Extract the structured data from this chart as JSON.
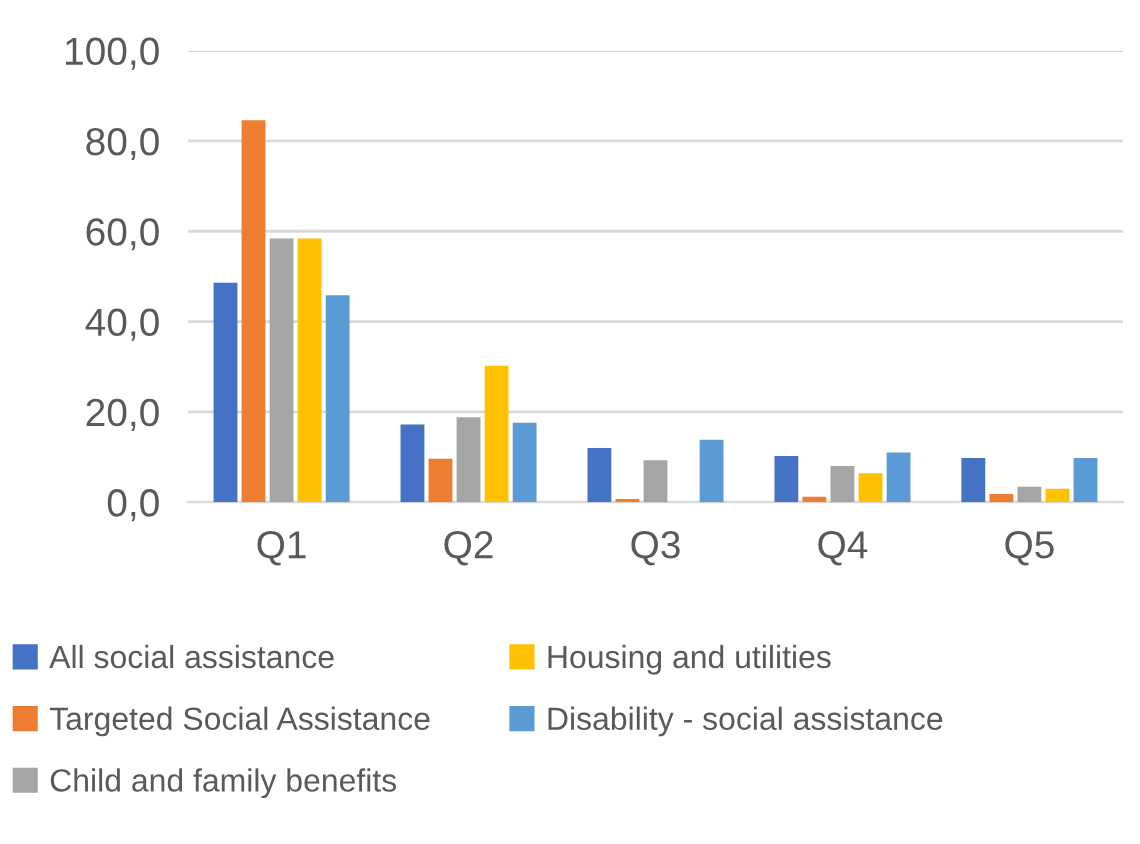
{
  "chart_data": {
    "type": "bar",
    "categories": [
      "Q1",
      "Q2",
      "Q3",
      "Q4",
      "Q5"
    ],
    "series": [
      {
        "name": "All social assistance",
        "color": "#4472c4",
        "values": [
          48.6,
          17.2,
          12.0,
          10.2,
          9.8
        ]
      },
      {
        "name": "Targeted Social Assistance",
        "color": "#ed7d31",
        "values": [
          84.6,
          9.6,
          0.7,
          1.2,
          1.8
        ]
      },
      {
        "name": "Child and family benefits",
        "color": "#a5a5a5",
        "values": [
          58.4,
          18.8,
          9.3,
          8.0,
          3.4
        ]
      },
      {
        "name": "Housing and utilities",
        "color": "#ffc000",
        "values": [
          58.4,
          30.2,
          null,
          6.4,
          3.0
        ]
      },
      {
        "name": "Disability - social assistance",
        "color": "#5b9bd5",
        "values": [
          45.8,
          17.6,
          13.8,
          11.0,
          9.8
        ]
      }
    ],
    "ylim": [
      0,
      100
    ],
    "yticks": [
      {
        "value": 0,
        "label": "0,0"
      },
      {
        "value": 20,
        "label": "20,0"
      },
      {
        "value": 40,
        "label": "40,0"
      },
      {
        "value": 60,
        "label": "60,0"
      },
      {
        "value": 80,
        "label": "80,0"
      },
      {
        "value": 100,
        "label": "100,0"
      }
    ],
    "grid": "y",
    "legend": "bottom"
  }
}
